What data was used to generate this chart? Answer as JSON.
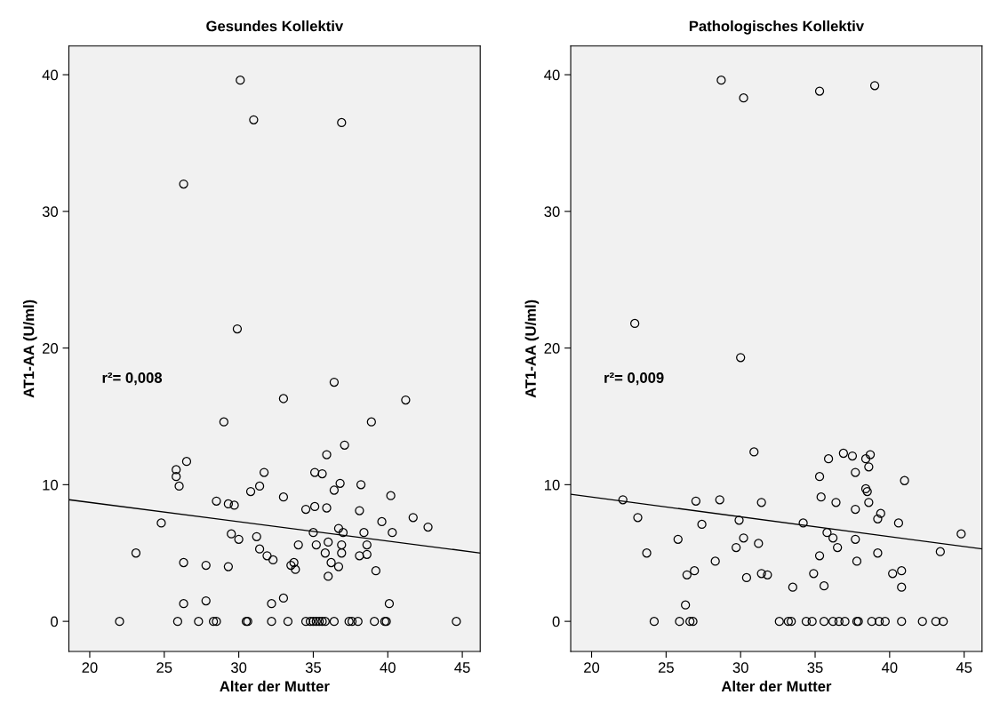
{
  "chart_data": [
    {
      "type": "scatter",
      "title": "Gesundes Kollektiv",
      "xlabel": "Alter der Mutter",
      "ylabel": "AT1-AA (U/ml)",
      "annotations": [
        "r²= 0,008"
      ],
      "xlim": [
        18.6,
        46.2
      ],
      "ylim": [
        -2.2,
        42.1
      ],
      "xticks": [
        20,
        25,
        30,
        35,
        40,
        45
      ],
      "yticks": [
        0,
        10,
        20,
        30,
        40
      ],
      "grid": false,
      "series": [
        {
          "type": "scatter",
          "color": "#000000",
          "marker": "circle",
          "x": [
            22.0,
            25.9,
            27.3,
            28.3,
            28.5,
            30.5,
            30.6,
            32.2,
            33.3,
            34.5,
            34.8,
            35.0,
            35.2,
            35.4,
            35.6,
            35.8,
            36.4,
            37.4,
            37.6,
            38.0,
            39.1,
            39.8,
            39.9,
            44.6,
            26.3,
            27.8,
            32.2,
            33.0,
            40.1,
            23.1,
            26.3,
            27.8,
            29.3,
            29.5,
            30.0,
            31.2,
            31.4,
            31.9,
            32.3,
            33.5,
            33.7,
            33.8,
            34.0,
            34.5,
            35.1,
            35.9,
            35.0,
            35.2,
            35.8,
            36.0,
            36.0,
            36.2,
            36.7,
            36.7,
            37.0,
            36.9,
            36.9,
            38.1,
            38.6,
            38.6,
            38.4,
            38.1,
            39.2,
            39.6,
            40.3,
            41.7,
            42.7,
            24.8,
            28.5,
            29.3,
            29.7,
            33.0,
            40.2,
            29.9,
            36.4,
            33.0,
            41.2,
            29.0,
            38.9,
            37.1,
            35.9,
            26.5,
            25.8,
            25.8,
            26.0,
            31.7,
            35.1,
            35.6,
            31.4,
            30.8,
            36.4,
            36.8,
            38.2,
            30.1,
            31.0,
            36.9,
            26.3
          ],
          "values": [
            0,
            0,
            0,
            0,
            0,
            0,
            0,
            0,
            0,
            0,
            0,
            0,
            0,
            0,
            0,
            0,
            0,
            0,
            0,
            0,
            0,
            0,
            0,
            0,
            1.3,
            1.5,
            1.3,
            1.7,
            1.3,
            5.0,
            4.3,
            4.1,
            4.0,
            6.4,
            6.0,
            6.2,
            5.3,
            4.8,
            4.5,
            4.1,
            4.3,
            3.8,
            5.6,
            8.2,
            8.4,
            8.3,
            6.5,
            5.6,
            5.0,
            5.8,
            3.3,
            4.3,
            4.0,
            6.8,
            6.5,
            5.6,
            5.0,
            4.8,
            4.9,
            5.6,
            6.5,
            8.1,
            3.7,
            7.3,
            6.5,
            7.6,
            6.9,
            7.2,
            8.8,
            8.6,
            8.5,
            9.1,
            9.2,
            21.4,
            17.5,
            16.3,
            16.2,
            14.6,
            14.6,
            12.9,
            12.2,
            11.7,
            11.1,
            10.6,
            9.9,
            10.9,
            10.9,
            10.8,
            9.9,
            9.5,
            9.6,
            10.1,
            10.0,
            39.6,
            36.7,
            36.5,
            32.0
          ]
        },
        {
          "type": "line",
          "color": "#000000",
          "marker": "none",
          "x": [
            18.6,
            46.2
          ],
          "values": [
            8.9,
            5.0
          ]
        }
      ]
    },
    {
      "type": "scatter",
      "title": "Pathologisches Kollektiv",
      "xlabel": "Alter der Mutter",
      "ylabel": "AT1-AA (U/ml)",
      "annotations": [
        "r²= 0,009"
      ],
      "xlim": [
        18.6,
        46.2
      ],
      "ylim": [
        -2.2,
        42.1
      ],
      "xticks": [
        20,
        25,
        30,
        35,
        40,
        45
      ],
      "yticks": [
        0,
        10,
        20,
        30,
        40
      ],
      "grid": false,
      "series": [
        {
          "type": "scatter",
          "color": "#000000",
          "marker": "circle",
          "x": [
            24.2,
            25.9,
            26.6,
            26.8,
            32.6,
            33.2,
            33.4,
            34.4,
            34.8,
            35.6,
            36.2,
            36.6,
            37.0,
            37.8,
            37.9,
            38.8,
            39.3,
            39.7,
            40.8,
            42.2,
            43.1,
            43.6,
            26.3,
            25.8,
            23.7,
            26.4,
            26.9,
            23.1,
            22.1,
            27.4,
            27.0,
            28.6,
            28.3,
            29.9,
            29.7,
            30.2,
            30.4,
            31.2,
            31.4,
            31.4,
            31.8,
            33.5,
            34.2,
            34.9,
            35.3,
            35.4,
            35.6,
            35.8,
            36.2,
            36.5,
            36.4,
            37.7,
            37.7,
            37.8,
            38.6,
            39.2,
            39.4,
            39.2,
            40.6,
            40.2,
            40.8,
            40.8,
            43.4,
            44.8,
            22.9,
            30.0,
            30.9,
            35.9,
            36.9,
            37.5,
            38.4,
            38.7,
            38.6,
            35.3,
            37.7,
            38.4,
            38.5,
            41.0,
            28.7,
            30.2,
            35.3,
            39.0
          ],
          "values": [
            0,
            0,
            0,
            0,
            0,
            0,
            0,
            0,
            0,
            0,
            0,
            0,
            0,
            0,
            0,
            0,
            0,
            0,
            0,
            0,
            0,
            0,
            1.2,
            6.0,
            5.0,
            3.4,
            3.7,
            7.6,
            8.9,
            7.1,
            8.8,
            8.9,
            4.4,
            7.4,
            5.4,
            6.1,
            3.2,
            5.7,
            8.7,
            3.5,
            3.4,
            2.5,
            7.2,
            3.5,
            4.8,
            9.1,
            2.6,
            6.5,
            6.1,
            5.4,
            8.7,
            8.2,
            6.0,
            4.4,
            8.7,
            7.5,
            7.9,
            5.0,
            7.2,
            3.5,
            3.7,
            2.5,
            5.1,
            6.4,
            21.8,
            19.3,
            12.4,
            11.9,
            12.3,
            12.1,
            11.9,
            12.2,
            11.3,
            10.6,
            10.9,
            9.7,
            9.5,
            10.3,
            39.6,
            38.3,
            38.8,
            39.2
          ]
        },
        {
          "type": "line",
          "color": "#000000",
          "marker": "none",
          "x": [
            18.6,
            46.2
          ],
          "values": [
            9.3,
            5.3
          ]
        }
      ]
    }
  ]
}
